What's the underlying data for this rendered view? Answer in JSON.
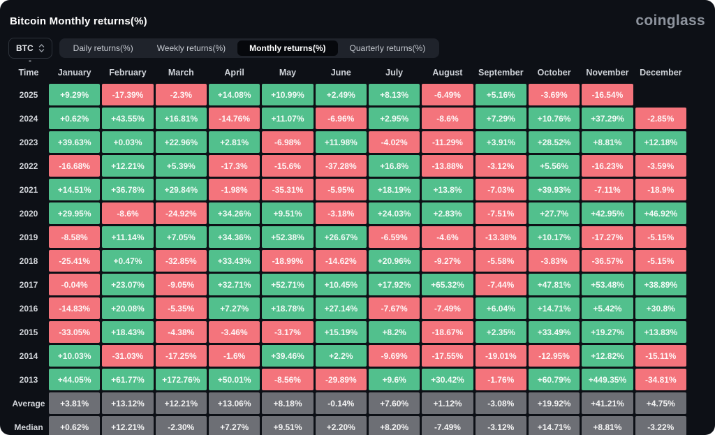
{
  "header": {
    "title": "Bitcoin Monthly returns(%)",
    "logo": "coinglass"
  },
  "controls": {
    "coin_selector": {
      "label": "BTC",
      "icon": "sort-arrows-icon"
    },
    "tabs": [
      {
        "label": "Daily returns(%)",
        "active": false
      },
      {
        "label": "Weekly returns(%)",
        "active": false
      },
      {
        "label": "Monthly returns(%)",
        "active": true
      },
      {
        "label": "Quarterly returns(%)",
        "active": false
      }
    ]
  },
  "table": {
    "time_header": "Time",
    "months": [
      "January",
      "February",
      "March",
      "April",
      "May",
      "June",
      "July",
      "August",
      "September",
      "October",
      "November",
      "December"
    ],
    "rows": [
      {
        "label": "2025",
        "kind": "year",
        "values": [
          "+9.29%",
          "-17.39%",
          "-2.3%",
          "+14.08%",
          "+10.99%",
          "+2.49%",
          "+8.13%",
          "-6.49%",
          "+5.16%",
          "-3.69%",
          "-16.54%",
          null
        ]
      },
      {
        "label": "2024",
        "kind": "year",
        "values": [
          "+0.62%",
          "+43.55%",
          "+16.81%",
          "-14.76%",
          "+11.07%",
          "-6.96%",
          "+2.95%",
          "-8.6%",
          "+7.29%",
          "+10.76%",
          "+37.29%",
          "-2.85%"
        ]
      },
      {
        "label": "2023",
        "kind": "year",
        "values": [
          "+39.63%",
          "+0.03%",
          "+22.96%",
          "+2.81%",
          "-6.98%",
          "+11.98%",
          "-4.02%",
          "-11.29%",
          "+3.91%",
          "+28.52%",
          "+8.81%",
          "+12.18%"
        ]
      },
      {
        "label": "2022",
        "kind": "year",
        "values": [
          "-16.68%",
          "+12.21%",
          "+5.39%",
          "-17.3%",
          "-15.6%",
          "-37.28%",
          "+16.8%",
          "-13.88%",
          "-3.12%",
          "+5.56%",
          "-16.23%",
          "-3.59%"
        ]
      },
      {
        "label": "2021",
        "kind": "year",
        "values": [
          "+14.51%",
          "+36.78%",
          "+29.84%",
          "-1.98%",
          "-35.31%",
          "-5.95%",
          "+18.19%",
          "+13.8%",
          "-7.03%",
          "+39.93%",
          "-7.11%",
          "-18.9%"
        ]
      },
      {
        "label": "2020",
        "kind": "year",
        "values": [
          "+29.95%",
          "-8.6%",
          "-24.92%",
          "+34.26%",
          "+9.51%",
          "-3.18%",
          "+24.03%",
          "+2.83%",
          "-7.51%",
          "+27.7%",
          "+42.95%",
          "+46.92%"
        ]
      },
      {
        "label": "2019",
        "kind": "year",
        "values": [
          "-8.58%",
          "+11.14%",
          "+7.05%",
          "+34.36%",
          "+52.38%",
          "+26.67%",
          "-6.59%",
          "-4.6%",
          "-13.38%",
          "+10.17%",
          "-17.27%",
          "-5.15%"
        ]
      },
      {
        "label": "2018",
        "kind": "year",
        "values": [
          "-25.41%",
          "+0.47%",
          "-32.85%",
          "+33.43%",
          "-18.99%",
          "-14.62%",
          "+20.96%",
          "-9.27%",
          "-5.58%",
          "-3.83%",
          "-36.57%",
          "-5.15%"
        ]
      },
      {
        "label": "2017",
        "kind": "year",
        "values": [
          "-0.04%",
          "+23.07%",
          "-9.05%",
          "+32.71%",
          "+52.71%",
          "+10.45%",
          "+17.92%",
          "+65.32%",
          "-7.44%",
          "+47.81%",
          "+53.48%",
          "+38.89%"
        ]
      },
      {
        "label": "2016",
        "kind": "year",
        "values": [
          "-14.83%",
          "+20.08%",
          "-5.35%",
          "+7.27%",
          "+18.78%",
          "+27.14%",
          "-7.67%",
          "-7.49%",
          "+6.04%",
          "+14.71%",
          "+5.42%",
          "+30.8%"
        ]
      },
      {
        "label": "2015",
        "kind": "year",
        "values": [
          "-33.05%",
          "+18.43%",
          "-4.38%",
          "-3.46%",
          "-3.17%",
          "+15.19%",
          "+8.2%",
          "-18.67%",
          "+2.35%",
          "+33.49%",
          "+19.27%",
          "+13.83%"
        ]
      },
      {
        "label": "2014",
        "kind": "year",
        "values": [
          "+10.03%",
          "-31.03%",
          "-17.25%",
          "-1.6%",
          "+39.46%",
          "+2.2%",
          "-9.69%",
          "-17.55%",
          "-19.01%",
          "-12.95%",
          "+12.82%",
          "-15.11%"
        ]
      },
      {
        "label": "2013",
        "kind": "year",
        "values": [
          "+44.05%",
          "+61.77%",
          "+172.76%",
          "+50.01%",
          "-8.56%",
          "-29.89%",
          "+9.6%",
          "+30.42%",
          "-1.76%",
          "+60.79%",
          "+449.35%",
          "-34.81%"
        ]
      },
      {
        "label": "Average",
        "kind": "summary",
        "values": [
          "+3.81%",
          "+13.12%",
          "+12.21%",
          "+13.06%",
          "+8.18%",
          "-0.14%",
          "+7.60%",
          "+1.12%",
          "-3.08%",
          "+19.92%",
          "+41.21%",
          "+4.75%"
        ]
      },
      {
        "label": "Median",
        "kind": "summary",
        "values": [
          "+0.62%",
          "+12.21%",
          "-2.30%",
          "+7.27%",
          "+9.51%",
          "+2.20%",
          "+8.20%",
          "-7.49%",
          "-3.12%",
          "+14.71%",
          "+8.81%",
          "-3.22%"
        ]
      }
    ]
  },
  "colors": {
    "background": "#0d1016",
    "positive": "#52c08d",
    "negative": "#f4747c",
    "summary": "#6d6f75",
    "active_tab_bg": "#06080c",
    "logo_gray": "#8e949e"
  }
}
